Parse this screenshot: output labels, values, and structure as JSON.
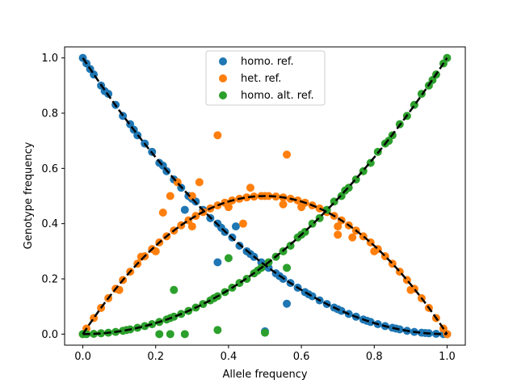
{
  "chart_data": {
    "type": "scatter",
    "title": "",
    "xlabel": "Allele frequency",
    "ylabel": "Genotype frequency",
    "xlim": [
      -0.05,
      1.05
    ],
    "ylim": [
      -0.04,
      1.04
    ],
    "xticks": [
      0.0,
      0.2,
      0.4,
      0.6,
      0.8,
      1.0
    ],
    "yticks": [
      0.0,
      0.2,
      0.4,
      0.6,
      0.8,
      1.0
    ],
    "xtick_labels": [
      "0.0",
      "0.2",
      "0.4",
      "0.6",
      "0.8",
      "1.0"
    ],
    "ytick_labels": [
      "0.0",
      "0.2",
      "0.4",
      "0.6",
      "0.8",
      "1.0"
    ],
    "grid": false,
    "legend_position": "upper-center",
    "series": [
      {
        "name": "homo. ref.",
        "color": "#1f77b4",
        "x": [
          0.0,
          0.01,
          0.02,
          0.03,
          0.05,
          0.07,
          0.09,
          0.11,
          0.13,
          0.15,
          0.17,
          0.19,
          0.21,
          0.23,
          0.25,
          0.27,
          0.29,
          0.31,
          0.33,
          0.35,
          0.37,
          0.39,
          0.41,
          0.43,
          0.45,
          0.47,
          0.49,
          0.51,
          0.53,
          0.55,
          0.57,
          0.59,
          0.61,
          0.63,
          0.65,
          0.67,
          0.69,
          0.71,
          0.73,
          0.75,
          0.77,
          0.79,
          0.81,
          0.83,
          0.85,
          0.87,
          0.89,
          0.91,
          0.93,
          0.95,
          0.97,
          0.99,
          1.0,
          0.06,
          0.14,
          0.22,
          0.3,
          0.38,
          0.46,
          0.54,
          0.62,
          0.7,
          0.78,
          0.86,
          0.94,
          0.28,
          0.37,
          0.42,
          0.5,
          0.56
        ],
        "y": [
          1.0,
          0.98,
          0.96,
          0.94,
          0.9,
          0.87,
          0.83,
          0.79,
          0.76,
          0.72,
          0.69,
          0.66,
          0.62,
          0.59,
          0.56,
          0.53,
          0.5,
          0.48,
          0.45,
          0.42,
          0.4,
          0.37,
          0.35,
          0.32,
          0.3,
          0.28,
          0.26,
          0.24,
          0.22,
          0.2,
          0.185,
          0.168,
          0.152,
          0.137,
          0.122,
          0.109,
          0.096,
          0.084,
          0.073,
          0.063,
          0.053,
          0.044,
          0.036,
          0.029,
          0.023,
          0.017,
          0.012,
          0.008,
          0.005,
          0.003,
          0.001,
          0.0,
          0.0,
          0.88,
          0.74,
          0.61,
          0.49,
          0.385,
          0.29,
          0.21,
          0.144,
          0.09,
          0.048,
          0.02,
          0.004,
          0.45,
          0.26,
          0.39,
          0.01,
          0.11
        ]
      },
      {
        "name": "het. ref.",
        "color": "#ff7f0e",
        "x": [
          0.0,
          0.01,
          0.03,
          0.05,
          0.07,
          0.09,
          0.11,
          0.13,
          0.15,
          0.17,
          0.19,
          0.21,
          0.23,
          0.25,
          0.27,
          0.29,
          0.31,
          0.33,
          0.35,
          0.37,
          0.39,
          0.41,
          0.43,
          0.45,
          0.47,
          0.49,
          0.51,
          0.53,
          0.55,
          0.57,
          0.59,
          0.61,
          0.63,
          0.65,
          0.67,
          0.69,
          0.71,
          0.73,
          0.75,
          0.77,
          0.79,
          0.81,
          0.83,
          0.85,
          0.87,
          0.89,
          0.91,
          0.93,
          0.95,
          0.97,
          0.99,
          1.0,
          0.1,
          0.2,
          0.3,
          0.4,
          0.5,
          0.6,
          0.7,
          0.8,
          0.9,
          0.37,
          0.56,
          0.24,
          0.26,
          0.3,
          0.32,
          0.46,
          0.55,
          0.22,
          0.16,
          0.44,
          0.74,
          0.7
        ],
        "y": [
          0.0,
          0.02,
          0.058,
          0.095,
          0.13,
          0.164,
          0.196,
          0.226,
          0.255,
          0.282,
          0.308,
          0.332,
          0.354,
          0.375,
          0.394,
          0.412,
          0.428,
          0.442,
          0.455,
          0.466,
          0.476,
          0.484,
          0.49,
          0.495,
          0.498,
          0.5,
          0.5,
          0.498,
          0.495,
          0.49,
          0.484,
          0.476,
          0.466,
          0.455,
          0.442,
          0.428,
          0.412,
          0.394,
          0.375,
          0.354,
          0.332,
          0.308,
          0.282,
          0.255,
          0.226,
          0.196,
          0.164,
          0.13,
          0.095,
          0.058,
          0.02,
          0.0,
          0.16,
          0.3,
          0.39,
          0.46,
          0.5,
          0.46,
          0.39,
          0.3,
          0.16,
          0.72,
          0.65,
          0.5,
          0.55,
          0.5,
          0.55,
          0.53,
          0.47,
          0.44,
          0.28,
          0.4,
          0.35,
          0.36
        ]
      },
      {
        "name": "homo. alt. ref.",
        "color": "#2ca02c",
        "x": [
          0.0,
          0.01,
          0.03,
          0.05,
          0.07,
          0.09,
          0.11,
          0.13,
          0.15,
          0.17,
          0.19,
          0.21,
          0.23,
          0.25,
          0.27,
          0.29,
          0.31,
          0.33,
          0.35,
          0.37,
          0.39,
          0.41,
          0.43,
          0.45,
          0.47,
          0.49,
          0.51,
          0.53,
          0.55,
          0.57,
          0.59,
          0.61,
          0.63,
          0.65,
          0.67,
          0.69,
          0.71,
          0.73,
          0.75,
          0.77,
          0.79,
          0.81,
          0.83,
          0.85,
          0.87,
          0.89,
          0.91,
          0.93,
          0.95,
          0.97,
          0.99,
          1.0,
          0.12,
          0.24,
          0.36,
          0.48,
          0.6,
          0.72,
          0.84,
          0.96,
          0.25,
          0.37,
          0.5,
          0.56,
          0.21,
          0.28,
          0.24,
          0.4
        ],
        "y": [
          0.0,
          0.0,
          0.001,
          0.003,
          0.005,
          0.008,
          0.012,
          0.017,
          0.023,
          0.029,
          0.036,
          0.044,
          0.053,
          0.063,
          0.073,
          0.084,
          0.096,
          0.109,
          0.122,
          0.137,
          0.152,
          0.168,
          0.185,
          0.2,
          0.22,
          0.24,
          0.26,
          0.28,
          0.3,
          0.32,
          0.35,
          0.37,
          0.4,
          0.42,
          0.45,
          0.48,
          0.5,
          0.53,
          0.56,
          0.59,
          0.62,
          0.66,
          0.69,
          0.72,
          0.76,
          0.79,
          0.83,
          0.87,
          0.9,
          0.94,
          0.98,
          1.0,
          0.015,
          0.058,
          0.13,
          0.23,
          0.36,
          0.52,
          0.7,
          0.92,
          0.16,
          0.015,
          0.005,
          0.24,
          0.0,
          0.0,
          0.0,
          0.275
        ]
      }
    ],
    "expected_curves": [
      {
        "name": "",
        "style": "dashed",
        "color": "#000000",
        "formula": "(1-p)^2"
      },
      {
        "name": "",
        "style": "dashed",
        "color": "#000000",
        "formula": "2p(1-p)"
      },
      {
        "name": "",
        "style": "dashed",
        "color": "#000000",
        "formula": "p^2"
      }
    ]
  }
}
